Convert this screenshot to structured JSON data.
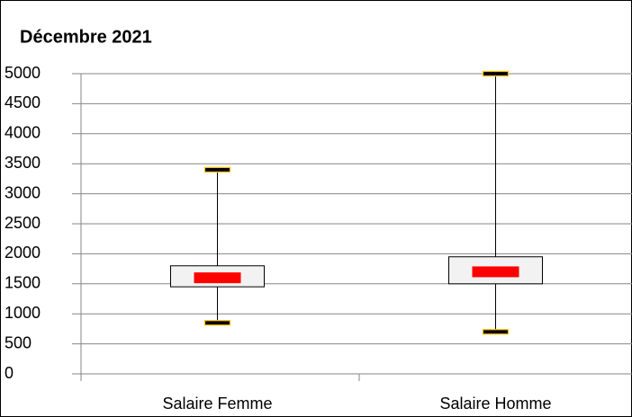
{
  "chart_data": {
    "type": "box",
    "title": "Décembre 2021",
    "categories": [
      "Salaire Femme",
      "Salaire Homme"
    ],
    "min": [
      850,
      700
    ],
    "q1": [
      1450,
      1500
    ],
    "median": [
      1600,
      1700
    ],
    "q3": [
      1800,
      1950
    ],
    "max": [
      3400,
      5000
    ],
    "ylim": [
      0,
      5000
    ],
    "yticks": [
      0,
      500,
      1000,
      1500,
      2000,
      2500,
      3000,
      3500,
      4000,
      4500,
      5000
    ],
    "grid": true,
    "box_color": "#f2f2f2",
    "median_color": "#ff0000",
    "whisker_color": "#000000",
    "cap_edge_color": "#ffc000"
  }
}
